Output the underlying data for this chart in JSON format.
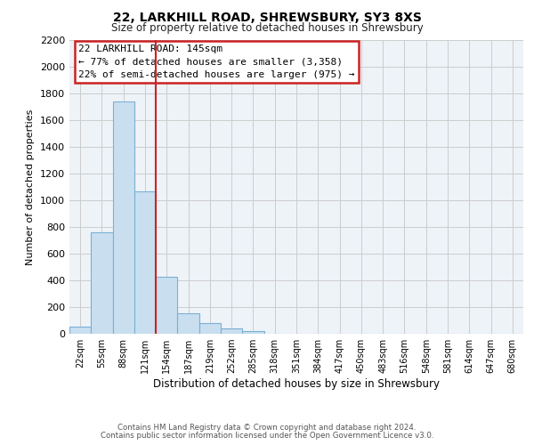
{
  "title1": "22, LARKHILL ROAD, SHREWSBURY, SY3 8XS",
  "title2": "Size of property relative to detached houses in Shrewsbury",
  "xlabel": "Distribution of detached houses by size in Shrewsbury",
  "ylabel": "Number of detached properties",
  "footer1": "Contains HM Land Registry data © Crown copyright and database right 2024.",
  "footer2": "Contains public sector information licensed under the Open Government Licence v3.0.",
  "bar_labels": [
    "22sqm",
    "55sqm",
    "88sqm",
    "121sqm",
    "154sqm",
    "187sqm",
    "219sqm",
    "252sqm",
    "285sqm",
    "318sqm",
    "351sqm",
    "384sqm",
    "417sqm",
    "450sqm",
    "483sqm",
    "516sqm",
    "548sqm",
    "581sqm",
    "614sqm",
    "647sqm",
    "680sqm"
  ],
  "bar_values": [
    55,
    760,
    1740,
    1070,
    430,
    155,
    80,
    40,
    22,
    0,
    0,
    0,
    0,
    0,
    0,
    0,
    0,
    0,
    0,
    0,
    0
  ],
  "bar_color": "#c9dff0",
  "bar_edge_color": "#7bafd4",
  "grid_color": "#cccccc",
  "red_line_index": 3.5,
  "annotation_title": "22 LARKHILL ROAD: 145sqm",
  "annotation_line1": "← 77% of detached houses are smaller (3,358)",
  "annotation_line2": "22% of semi-detached houses are larger (975) →",
  "annotation_border_color": "#cc2222",
  "red_line_color": "#cc2222",
  "ylim": [
    0,
    2200
  ],
  "yticks": [
    0,
    200,
    400,
    600,
    800,
    1000,
    1200,
    1400,
    1600,
    1800,
    2000,
    2200
  ],
  "fig_bg": "#ffffff",
  "plot_bg": "#eef3f8"
}
